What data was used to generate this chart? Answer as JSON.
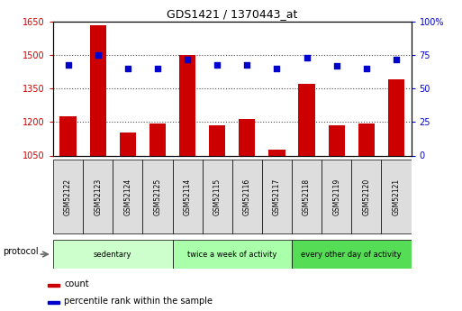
{
  "title": "GDS1421 / 1370443_at",
  "samples": [
    "GSM52122",
    "GSM52123",
    "GSM52124",
    "GSM52125",
    "GSM52114",
    "GSM52115",
    "GSM52116",
    "GSM52117",
    "GSM52118",
    "GSM52119",
    "GSM52120",
    "GSM52121"
  ],
  "counts": [
    1224,
    1635,
    1155,
    1195,
    1500,
    1185,
    1215,
    1075,
    1370,
    1185,
    1195,
    1390
  ],
  "percentiles": [
    68,
    75,
    65,
    65,
    72,
    68,
    68,
    65,
    73,
    67,
    65,
    72
  ],
  "ylim_left": [
    1050,
    1650
  ],
  "ylim_right": [
    0,
    100
  ],
  "yticks_left": [
    1050,
    1200,
    1350,
    1500,
    1650
  ],
  "yticks_right": [
    0,
    25,
    50,
    75,
    100
  ],
  "bar_color": "#cc0000",
  "dot_color": "#0000cc",
  "bar_width": 0.55,
  "groups": [
    {
      "label": "sedentary",
      "start": 0,
      "end": 3,
      "color": "#ccffcc"
    },
    {
      "label": "twice a week of activity",
      "start": 4,
      "end": 7,
      "color": "#aaffaa"
    },
    {
      "label": "every other day of activity",
      "start": 8,
      "end": 11,
      "color": "#55dd55"
    }
  ],
  "protocol_label": "protocol",
  "legend_count": "count",
  "legend_pct": "percentile rank within the sample",
  "background_color": "#ffffff",
  "plot_bg": "#ffffff",
  "tick_color_left": "#cc0000",
  "tick_color_right": "#0000cc",
  "xtick_bg": "#dddddd",
  "grid_style": "dotted",
  "grid_color": "#000000",
  "grid_alpha": 0.7
}
